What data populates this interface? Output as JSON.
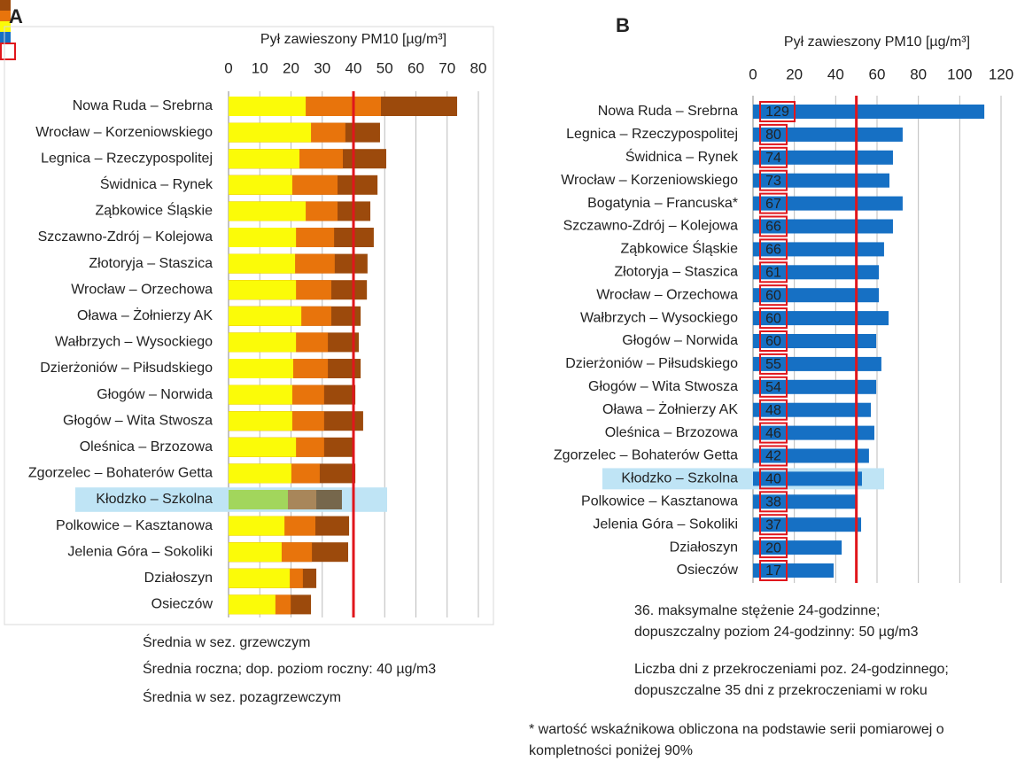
{
  "chart_data": [
    {
      "type": "bar",
      "orientation": "horizontal",
      "barmode": "overlay",
      "title": "A",
      "xlabel": "Pył zawieszony PM10 [µg/m³]",
      "categories": [
        "Nowa Ruda – Srebrna",
        "Wrocław – Korzeniowskiego",
        "Legnica – Rzeczypospolitej",
        "Świdnica – Rynek",
        "Ząbkowice Śląskie",
        "Szczawno-Zdrój – Kolejowa",
        "Złotoryja – Staszica",
        "Wrocław – Orzechowa",
        "Oława – Żołnierzy AK",
        "Wałbrzych – Wysockiego",
        "Dzierżoniów – Piłsudskiego",
        "Głogów – Norwida",
        "Głogów – Wita Stwosza",
        "Oleśnica – Brzozowa",
        "Zgorzelec – Bohaterów Getta",
        "Kłodzko – Szkolna",
        "Polkowice – Kasztanowa",
        "Jelenia Góra – Sokoliki",
        "Działoszyn",
        "Osieczów"
      ],
      "series": [
        {
          "name": "Średnia w sez. grzewczym",
          "color": "#9c4a0c",
          "highlight_color": "#76674c",
          "values": [
            73.2,
            48.5,
            50.5,
            47.7,
            45.4,
            46.5,
            44.5,
            44.3,
            42.3,
            41.7,
            42.3,
            40.6,
            43.1,
            40.3,
            40.6,
            36.3,
            38.6,
            38.3,
            28.1,
            26.4
          ]
        },
        {
          "name": "Średnia roczna; dop. poziom roczny: 40 µg/m3",
          "color": "#e8740c",
          "highlight_color": "#a8865a",
          "values": [
            48.8,
            37.4,
            36.6,
            34.9,
            34.9,
            33.8,
            34.0,
            32.9,
            32.9,
            31.8,
            31.8,
            30.6,
            30.6,
            30.6,
            29.2,
            28.1,
            27.8,
            26.7,
            23.8,
            19.9
          ]
        },
        {
          "name": "Średnia w sez. pozagrzewczym",
          "color": "#fbfb08",
          "highlight_color": "#a2d65c",
          "values": [
            24.7,
            26.4,
            22.7,
            20.4,
            24.7,
            21.6,
            21.3,
            21.6,
            23.3,
            21.6,
            20.7,
            20.4,
            20.4,
            21.6,
            20.1,
            19.0,
            17.9,
            17.0,
            19.6,
            15.0
          ]
        }
      ],
      "highlight_index": 15,
      "highlight_band_color": "#bfe4f5",
      "reference_line": {
        "value": 40,
        "color": "#e0161c"
      },
      "xlim": [
        0,
        80
      ],
      "xticks": [
        0,
        10,
        20,
        30,
        40,
        50,
        60,
        70,
        80
      ],
      "grid": true
    },
    {
      "type": "bar",
      "orientation": "horizontal",
      "title": "B",
      "xlabel": "Pył zawieszony PM10 [µg/m³]",
      "categories": [
        "Nowa Ruda – Srebrna",
        "Legnica – Rzeczypospolitej",
        "Świdnica – Rynek",
        "Wrocław – Korzeniowskiego",
        "Bogatynia – Francuska*",
        "Szczawno-Zdrój – Kolejowa",
        "Ząbkowice Śląskie",
        "Złotoryja – Staszica",
        "Wrocław – Orzechowa",
        "Wałbrzych – Wysockiego",
        "Głogów – Norwida",
        "Dzierżoniów – Piłsudskiego",
        "Głogów – Wita Stwosza",
        "Oława – Żołnierzy AK",
        "Oleśnica – Brzozowa",
        "Zgorzelec – Bohaterów Getta",
        "Kłodzko – Szkolna",
        "Polkowice – Kasztanowa",
        "Jelenia Góra – Sokoliki",
        "Działoszyn",
        "Osieczów"
      ],
      "series": [
        {
          "name": "36. maksymalne stężenie 24-godzinne;\ndopuszczalny poziom 24-godzinny: 50 µg/m3",
          "color": "#1670c4",
          "values": [
            111.9,
            72.4,
            67.7,
            66.0,
            72.4,
            67.7,
            63.4,
            60.9,
            60.9,
            65.6,
            59.6,
            62.1,
            59.6,
            57.0,
            58.7,
            56.1,
            52.7,
            50.6,
            52.3,
            42.9,
            39.0
          ]
        },
        {
          "name": "Liczba dni z przekroczeniami poz. 24-godzinnego;\ndopuszczalne 35 dni z przekroczeniami w roku",
          "color": "#e0161c",
          "mark": "box",
          "values": [
            129,
            80,
            74,
            73,
            67,
            66,
            66,
            61,
            60,
            60,
            60,
            55,
            54,
            48,
            46,
            42,
            40,
            38,
            37,
            20,
            17
          ]
        }
      ],
      "highlight_index": 16,
      "highlight_band_color": "#bfe4f5",
      "reference_line": {
        "value": 50,
        "color": "#e0161c"
      },
      "xlim": [
        0,
        120
      ],
      "xticks": [
        0,
        20,
        40,
        60,
        80,
        100,
        120
      ],
      "grid": true,
      "note": "* wartość wskaźnikowa obliczona na podstawie serii pomiarowej o\nkompletności poniżej 90%"
    }
  ]
}
